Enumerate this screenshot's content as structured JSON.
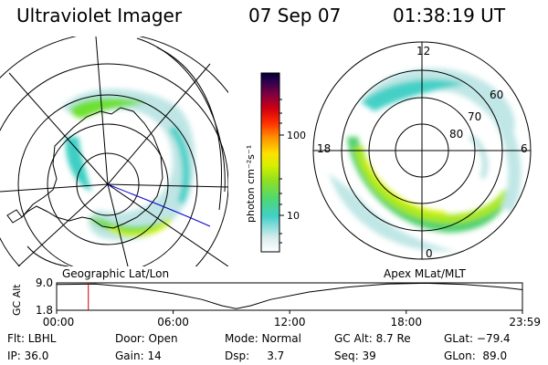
{
  "header": {
    "title": "Ultraviolet Imager",
    "date": "07 Sep 07",
    "time": "01:38:19 UT"
  },
  "left_panel": {
    "caption": "Geographic Lat/Lon"
  },
  "right_panel": {
    "caption": "Apex MLat/MLT",
    "lat_labels": [
      "60",
      "70",
      "80"
    ],
    "mlt_labels": [
      "12",
      "18",
      "6",
      "0"
    ]
  },
  "colorbar": {
    "label": "photon cm⁻²s⁻¹",
    "ticks": [
      "100",
      "10"
    ],
    "scale": "log",
    "colors": [
      "#d8d8d8",
      "#b4e0e0",
      "#40d0c8",
      "#70e030",
      "#c8f000",
      "#ffe000",
      "#ff9000",
      "#ff3000",
      "#d00000",
      "#900020",
      "#5a0040",
      "#2a0050",
      "#000040"
    ]
  },
  "chart_data": {
    "type": "line",
    "title": "",
    "ylabel": "GC Alt",
    "xlabel": "",
    "x_tick_labels": [
      "00:00",
      "06:00",
      "12:00",
      "18:00",
      "23:59"
    ],
    "y_tick_labels": [
      "9.0",
      "1.8"
    ],
    "ylim": [
      1.8,
      9.0
    ],
    "grid": false,
    "current_time_marker": "01:38",
    "series": [
      {
        "x": [
          "00:00",
          "02:00",
          "04:00",
          "06:00",
          "07:30",
          "08:30",
          "09:15",
          "10:00",
          "11:00",
          "13:00",
          "15:00",
          "17:00",
          "19:00",
          "21:00",
          "23:00",
          "23:59"
        ],
        "values": [
          8.6,
          8.7,
          7.8,
          6.2,
          4.6,
          3.0,
          2.2,
          3.0,
          4.6,
          6.6,
          7.9,
          8.7,
          8.9,
          8.6,
          7.8,
          7.2
        ]
      }
    ]
  },
  "footer": {
    "flt": "Flt: LBHL",
    "ip": "IP: 36.0",
    "door": "Door: Open",
    "gain": "Gain: 14",
    "mode": "Mode: Normal",
    "dsp": "Dsp:     3.7",
    "gcalt": "GC Alt: 8.7 Re",
    "seq": "Seq: 39",
    "glat": "GLat: −79.4",
    "glon": "GLon:  89.0"
  }
}
